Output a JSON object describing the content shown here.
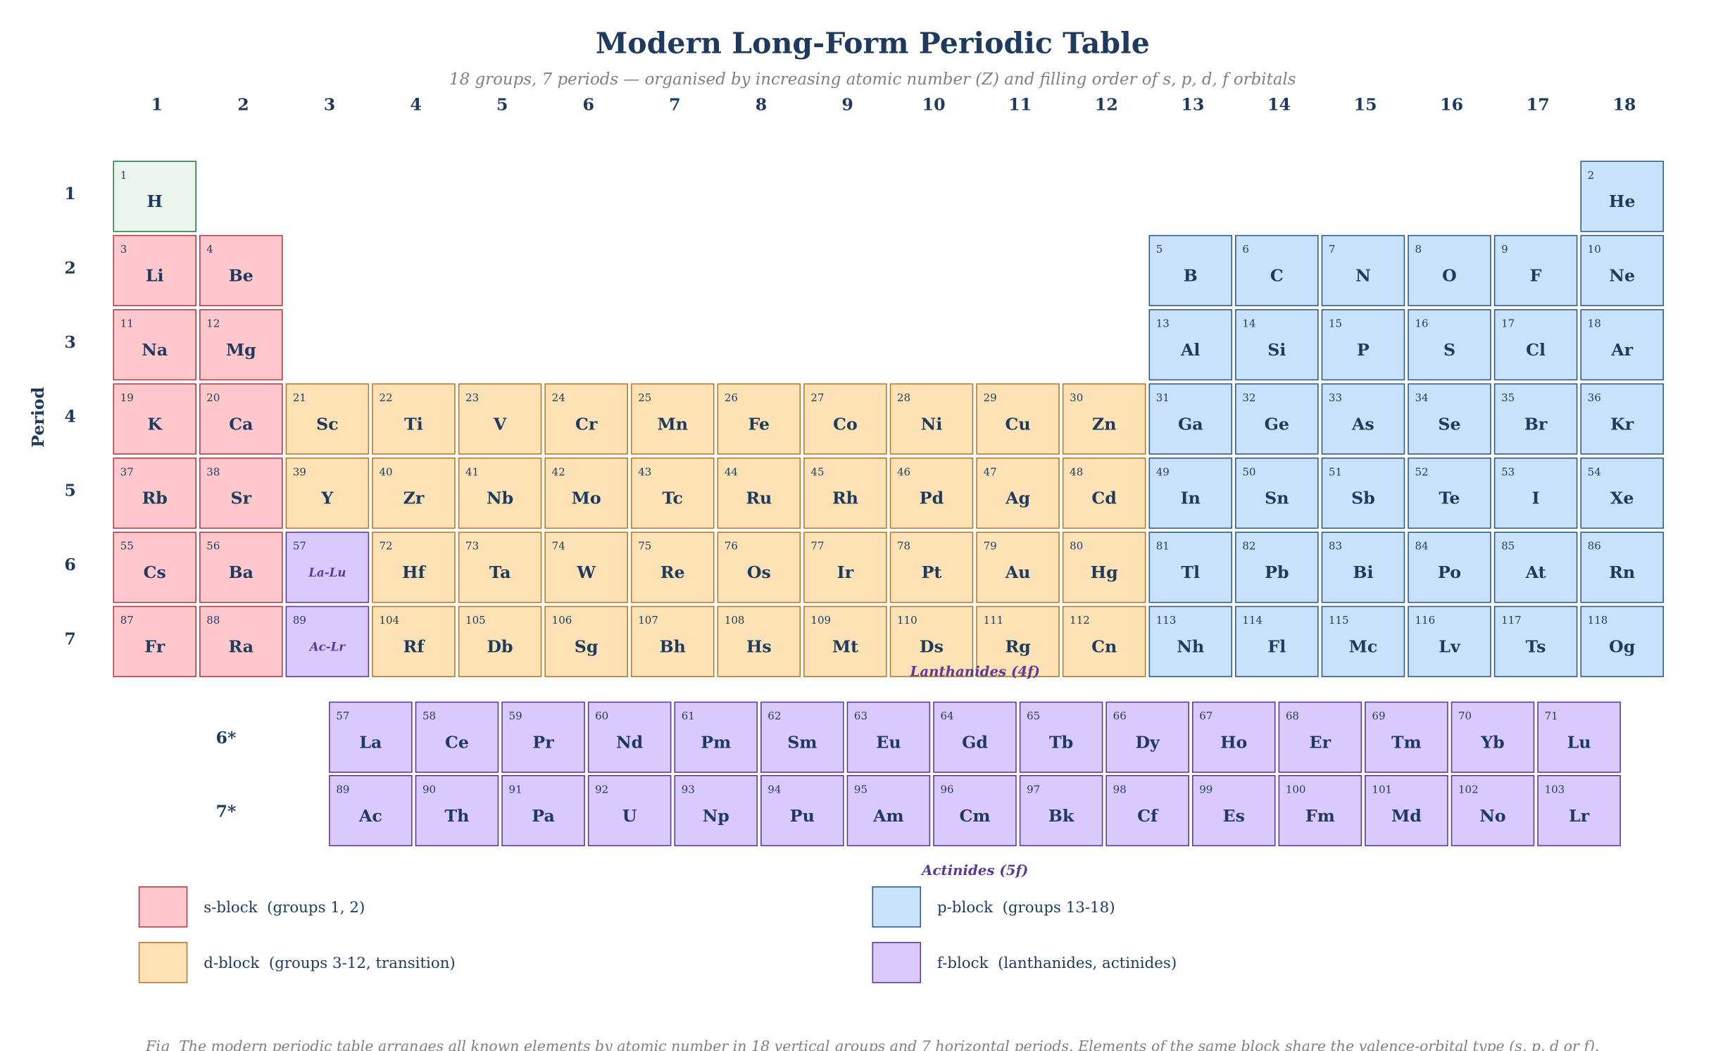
{
  "header": {
    "title": "Modern Long-Form Periodic Table",
    "subtitle": "18 groups, 7 periods — organised by increasing atomic number (Z) and filling order of s, p, d, f orbitals"
  },
  "groups": [
    1,
    2,
    3,
    4,
    5,
    6,
    7,
    8,
    9,
    10,
    11,
    12,
    13,
    14,
    15,
    16,
    17,
    18
  ],
  "period_axis": "Period",
  "periods": [
    1,
    2,
    3,
    4,
    5,
    6,
    7
  ],
  "blocks": {
    "s": {
      "fill": "#ffc9cc",
      "stroke": "#b03a48"
    },
    "d": {
      "fill": "#fde2b5",
      "stroke": "#b8782a"
    },
    "p": {
      "fill": "#c9e2fb",
      "stroke": "#2e5a88"
    },
    "f": {
      "fill": "#dac9fb",
      "stroke": "#5b3a9a"
    }
  },
  "rows": [
    [
      {
        "number": 1,
        "symbol": "H",
        "block": "s",
        "fill": "#e8f4ec",
        "stroke": "#2e7d46"
      },
      null,
      null,
      null,
      null,
      null,
      null,
      null,
      null,
      null,
      null,
      null,
      null,
      null,
      null,
      null,
      null,
      {
        "number": 2,
        "symbol": "He",
        "block": "p"
      }
    ],
    [
      {
        "number": 3,
        "symbol": "Li",
        "block": "s"
      },
      {
        "number": 4,
        "symbol": "Be",
        "block": "s"
      },
      null,
      null,
      null,
      null,
      null,
      null,
      null,
      null,
      null,
      null,
      {
        "number": 5,
        "symbol": "B",
        "block": "p"
      },
      {
        "number": 6,
        "symbol": "C",
        "block": "p"
      },
      {
        "number": 7,
        "symbol": "N",
        "block": "p"
      },
      {
        "number": 8,
        "symbol": "O",
        "block": "p"
      },
      {
        "number": 9,
        "symbol": "F",
        "block": "p"
      },
      {
        "number": 10,
        "symbol": "Ne",
        "block": "p"
      }
    ],
    [
      {
        "number": 11,
        "symbol": "Na",
        "block": "s"
      },
      {
        "number": 12,
        "symbol": "Mg",
        "block": "s"
      },
      null,
      null,
      null,
      null,
      null,
      null,
      null,
      null,
      null,
      null,
      {
        "number": 13,
        "symbol": "Al",
        "block": "p"
      },
      {
        "number": 14,
        "symbol": "Si",
        "block": "p"
      },
      {
        "number": 15,
        "symbol": "P",
        "block": "p"
      },
      {
        "number": 16,
        "symbol": "S",
        "block": "p"
      },
      {
        "number": 17,
        "symbol": "Cl",
        "block": "p"
      },
      {
        "number": 18,
        "symbol": "Ar",
        "block": "p"
      }
    ],
    [
      {
        "number": 19,
        "symbol": "K",
        "block": "s"
      },
      {
        "number": 20,
        "symbol": "Ca",
        "block": "s"
      },
      {
        "number": 21,
        "symbol": "Sc",
        "block": "d"
      },
      {
        "number": 22,
        "symbol": "Ti",
        "block": "d"
      },
      {
        "number": 23,
        "symbol": "V",
        "block": "d"
      },
      {
        "number": 24,
        "symbol": "Cr",
        "block": "d"
      },
      {
        "number": 25,
        "symbol": "Mn",
        "block": "d"
      },
      {
        "number": 26,
        "symbol": "Fe",
        "block": "d"
      },
      {
        "number": 27,
        "symbol": "Co",
        "block": "d"
      },
      {
        "number": 28,
        "symbol": "Ni",
        "block": "d"
      },
      {
        "number": 29,
        "symbol": "Cu",
        "block": "d"
      },
      {
        "number": 30,
        "symbol": "Zn",
        "block": "d"
      },
      {
        "number": 31,
        "symbol": "Ga",
        "block": "p"
      },
      {
        "number": 32,
        "symbol": "Ge",
        "block": "p"
      },
      {
        "number": 33,
        "symbol": "As",
        "block": "p"
      },
      {
        "number": 34,
        "symbol": "Se",
        "block": "p"
      },
      {
        "number": 35,
        "symbol": "Br",
        "block": "p"
      },
      {
        "number": 36,
        "symbol": "Kr",
        "block": "p"
      }
    ],
    [
      {
        "number": 37,
        "symbol": "Rb",
        "block": "s"
      },
      {
        "number": 38,
        "symbol": "Sr",
        "block": "s"
      },
      {
        "number": 39,
        "symbol": "Y",
        "block": "d"
      },
      {
        "number": 40,
        "symbol": "Zr",
        "block": "d"
      },
      {
        "number": 41,
        "symbol": "Nb",
        "block": "d"
      },
      {
        "number": 42,
        "symbol": "Mo",
        "block": "d"
      },
      {
        "number": 43,
        "symbol": "Tc",
        "block": "d"
      },
      {
        "number": 44,
        "symbol": "Ru",
        "block": "d"
      },
      {
        "number": 45,
        "symbol": "Rh",
        "block": "d"
      },
      {
        "number": 46,
        "symbol": "Pd",
        "block": "d"
      },
      {
        "number": 47,
        "symbol": "Ag",
        "block": "d"
      },
      {
        "number": 48,
        "symbol": "Cd",
        "block": "d"
      },
      {
        "number": 49,
        "symbol": "In",
        "block": "p"
      },
      {
        "number": 50,
        "symbol": "Sn",
        "block": "p"
      },
      {
        "number": 51,
        "symbol": "Sb",
        "block": "p"
      },
      {
        "number": 52,
        "symbol": "Te",
        "block": "p"
      },
      {
        "number": 53,
        "symbol": "I",
        "block": "p"
      },
      {
        "number": 54,
        "symbol": "Xe",
        "block": "p"
      }
    ],
    [
      {
        "number": 55,
        "symbol": "Cs",
        "block": "s"
      },
      {
        "number": 56,
        "symbol": "Ba",
        "block": "s"
      },
      {
        "number": 57,
        "label": "La-Lu",
        "block": "f"
      },
      {
        "number": 72,
        "symbol": "Hf",
        "block": "d"
      },
      {
        "number": 73,
        "symbol": "Ta",
        "block": "d"
      },
      {
        "number": 74,
        "symbol": "W",
        "block": "d"
      },
      {
        "number": 75,
        "symbol": "Re",
        "block": "d"
      },
      {
        "number": 76,
        "symbol": "Os",
        "block": "d"
      },
      {
        "number": 77,
        "symbol": "Ir",
        "block": "d"
      },
      {
        "number": 78,
        "symbol": "Pt",
        "block": "d"
      },
      {
        "number": 79,
        "symbol": "Au",
        "block": "d"
      },
      {
        "number": 80,
        "symbol": "Hg",
        "block": "d"
      },
      {
        "number": 81,
        "symbol": "Tl",
        "block": "p"
      },
      {
        "number": 82,
        "symbol": "Pb",
        "block": "p"
      },
      {
        "number": 83,
        "symbol": "Bi",
        "block": "p"
      },
      {
        "number": 84,
        "symbol": "Po",
        "block": "p"
      },
      {
        "number": 85,
        "symbol": "At",
        "block": "p"
      },
      {
        "number": 86,
        "symbol": "Rn",
        "block": "p"
      }
    ],
    [
      {
        "number": 87,
        "symbol": "Fr",
        "block": "s"
      },
      {
        "number": 88,
        "symbol": "Ra",
        "block": "s"
      },
      {
        "number": 89,
        "label": "Ac-Lr",
        "block": "f"
      },
      {
        "number": 104,
        "symbol": "Rf",
        "block": "d"
      },
      {
        "number": 105,
        "symbol": "Db",
        "block": "d"
      },
      {
        "number": 106,
        "symbol": "Sg",
        "block": "d"
      },
      {
        "number": 107,
        "symbol": "Bh",
        "block": "d"
      },
      {
        "number": 108,
        "symbol": "Hs",
        "block": "d"
      },
      {
        "number": 109,
        "symbol": "Mt",
        "block": "d"
      },
      {
        "number": 110,
        "symbol": "Ds",
        "block": "d"
      },
      {
        "number": 111,
        "symbol": "Rg",
        "block": "d"
      },
      {
        "number": 112,
        "symbol": "Cn",
        "block": "d"
      },
      {
        "number": 113,
        "symbol": "Nh",
        "block": "p"
      },
      {
        "number": 114,
        "symbol": "Fl",
        "block": "p"
      },
      {
        "number": 115,
        "symbol": "Mc",
        "block": "p"
      },
      {
        "number": 116,
        "symbol": "Lv",
        "block": "p"
      },
      {
        "number": 117,
        "symbol": "Ts",
        "block": "p"
      },
      {
        "number": 118,
        "symbol": "Og",
        "block": "p"
      }
    ]
  ],
  "f_rows": [
    {
      "label": "6*",
      "caption": "Lanthanides (4f)",
      "block": "f",
      "cells": [
        {
          "number": 57,
          "symbol": "La"
        },
        {
          "number": 58,
          "symbol": "Ce"
        },
        {
          "number": 59,
          "symbol": "Pr"
        },
        {
          "number": 60,
          "symbol": "Nd"
        },
        {
          "number": 61,
          "symbol": "Pm"
        },
        {
          "number": 62,
          "symbol": "Sm"
        },
        {
          "number": 63,
          "symbol": "Eu"
        },
        {
          "number": 64,
          "symbol": "Gd"
        },
        {
          "number": 65,
          "symbol": "Tb"
        },
        {
          "number": 66,
          "symbol": "Dy"
        },
        {
          "number": 67,
          "symbol": "Ho"
        },
        {
          "number": 68,
          "symbol": "Er"
        },
        {
          "number": 69,
          "symbol": "Tm"
        },
        {
          "number": 70,
          "symbol": "Yb"
        },
        {
          "number": 71,
          "symbol": "Lu"
        }
      ]
    },
    {
      "label": "7*",
      "caption": "Actinides (5f)",
      "block": "f",
      "cells": [
        {
          "number": 89,
          "symbol": "Ac"
        },
        {
          "number": 90,
          "symbol": "Th"
        },
        {
          "number": 91,
          "symbol": "Pa"
        },
        {
          "number": 92,
          "symbol": "U"
        },
        {
          "number": 93,
          "symbol": "Np"
        },
        {
          "number": 94,
          "symbol": "Pu"
        },
        {
          "number": 95,
          "symbol": "Am"
        },
        {
          "number": 96,
          "symbol": "Cm"
        },
        {
          "number": 97,
          "symbol": "Bk"
        },
        {
          "number": 98,
          "symbol": "Cf"
        },
        {
          "number": 99,
          "symbol": "Es"
        },
        {
          "number": 100,
          "symbol": "Fm"
        },
        {
          "number": 101,
          "symbol": "Md"
        },
        {
          "number": 102,
          "symbol": "No"
        },
        {
          "number": 103,
          "symbol": "Lr"
        }
      ]
    }
  ],
  "legend": [
    {
      "label": "s-block  (groups 1, 2)",
      "block": "s"
    },
    {
      "label": "p-block  (groups 13-18)",
      "block": "p"
    },
    {
      "label": "d-block  (groups 3-12, transition)",
      "block": "d"
    },
    {
      "label": "f-block  (lanthanides, actinides)",
      "block": "f"
    }
  ],
  "caption": "Fig  The modern periodic table arranges all known elements by atomic number in 18 vertical groups and 7 horizontal periods. Elements of the same block share the valence-orbital type (s, p, d or f)."
}
